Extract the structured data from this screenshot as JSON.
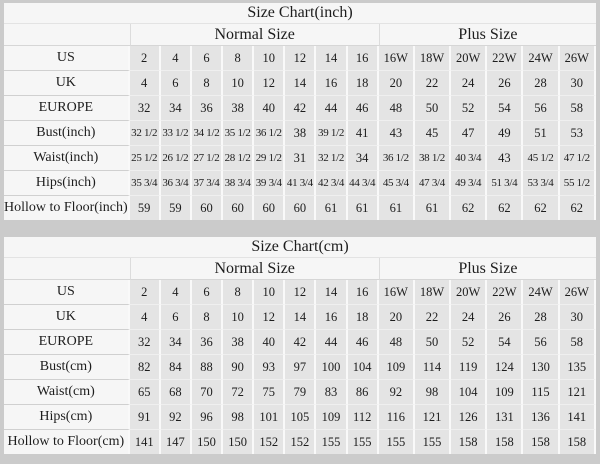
{
  "colors": {
    "page_background": "#cbcbcb",
    "header_background": "#f6f6f6",
    "cell_background": "#e4e4e4",
    "text": "#1d1d1d"
  },
  "chart_data": [
    {
      "type": "table",
      "title": "Size Chart(inch)",
      "normal_header": "Normal Size",
      "plus_header": "Plus Size",
      "normal_columns": 8,
      "plus_columns": 6,
      "rows": [
        {
          "label": "US",
          "normal": [
            "2",
            "4",
            "6",
            "8",
            "10",
            "12",
            "14",
            "16"
          ],
          "plus": [
            "16W",
            "18W",
            "20W",
            "22W",
            "24W",
            "26W"
          ]
        },
        {
          "label": "UK",
          "normal": [
            "4",
            "6",
            "8",
            "10",
            "12",
            "14",
            "16",
            "18"
          ],
          "plus": [
            "20",
            "22",
            "24",
            "26",
            "28",
            "30"
          ]
        },
        {
          "label": "EUROPE",
          "normal": [
            "32",
            "34",
            "36",
            "38",
            "40",
            "42",
            "44",
            "46"
          ],
          "plus": [
            "48",
            "50",
            "52",
            "54",
            "56",
            "58"
          ]
        },
        {
          "label": "Bust(inch)",
          "normal": [
            "32 1/2",
            "33 1/2",
            "34 1/2",
            "35 1/2",
            "36 1/2",
            "38",
            "39 1/2",
            "41"
          ],
          "plus": [
            "43",
            "45",
            "47",
            "49",
            "51",
            "53"
          ]
        },
        {
          "label": "Waist(inch)",
          "normal": [
            "25 1/2",
            "26 1/2",
            "27 1/2",
            "28 1/2",
            "29 1/2",
            "31",
            "32 1/2",
            "34"
          ],
          "plus": [
            "36 1/2",
            "38 1/2",
            "40 3/4",
            "43",
            "45 1/2",
            "47 1/2"
          ]
        },
        {
          "label": "Hips(inch)",
          "normal": [
            "35 3/4",
            "36 3/4",
            "37 3/4",
            "38 3/4",
            "39 3/4",
            "41 3/4",
            "42 3/4",
            "44 3/4"
          ],
          "plus": [
            "45 3/4",
            "47 3/4",
            "49 3/4",
            "51 3/4",
            "53 3/4",
            "55 1/2"
          ]
        },
        {
          "label": "Hollow to Floor(inch)",
          "normal": [
            "59",
            "59",
            "60",
            "60",
            "60",
            "60",
            "61",
            "61"
          ],
          "plus": [
            "61",
            "61",
            "62",
            "62",
            "62",
            "62"
          ]
        }
      ]
    },
    {
      "type": "table",
      "title": "Size Chart(cm)",
      "normal_header": "Normal Size",
      "plus_header": "Plus Size",
      "normal_columns": 8,
      "plus_columns": 6,
      "rows": [
        {
          "label": "US",
          "normal": [
            "2",
            "4",
            "6",
            "8",
            "10",
            "12",
            "14",
            "16"
          ],
          "plus": [
            "16W",
            "18W",
            "20W",
            "22W",
            "24W",
            "26W"
          ]
        },
        {
          "label": "UK",
          "normal": [
            "4",
            "6",
            "8",
            "10",
            "12",
            "14",
            "16",
            "18"
          ],
          "plus": [
            "20",
            "22",
            "24",
            "26",
            "28",
            "30"
          ]
        },
        {
          "label": "EUROPE",
          "normal": [
            "32",
            "34",
            "36",
            "38",
            "40",
            "42",
            "44",
            "46"
          ],
          "plus": [
            "48",
            "50",
            "52",
            "54",
            "56",
            "58"
          ]
        },
        {
          "label": "Bust(cm)",
          "normal": [
            "82",
            "84",
            "88",
            "90",
            "93",
            "97",
            "100",
            "104"
          ],
          "plus": [
            "109",
            "114",
            "119",
            "124",
            "130",
            "135"
          ]
        },
        {
          "label": "Waist(cm)",
          "normal": [
            "65",
            "68",
            "70",
            "72",
            "75",
            "79",
            "83",
            "86"
          ],
          "plus": [
            "92",
            "98",
            "104",
            "109",
            "115",
            "121"
          ]
        },
        {
          "label": "Hips(cm)",
          "normal": [
            "91",
            "92",
            "96",
            "98",
            "101",
            "105",
            "109",
            "112"
          ],
          "plus": [
            "116",
            "121",
            "126",
            "131",
            "136",
            "141"
          ]
        },
        {
          "label": "Hollow to Floor(cm)",
          "normal": [
            "141",
            "147",
            "150",
            "150",
            "152",
            "152",
            "155",
            "155"
          ],
          "plus": [
            "155",
            "155",
            "158",
            "158",
            "158",
            "158"
          ]
        }
      ]
    }
  ]
}
